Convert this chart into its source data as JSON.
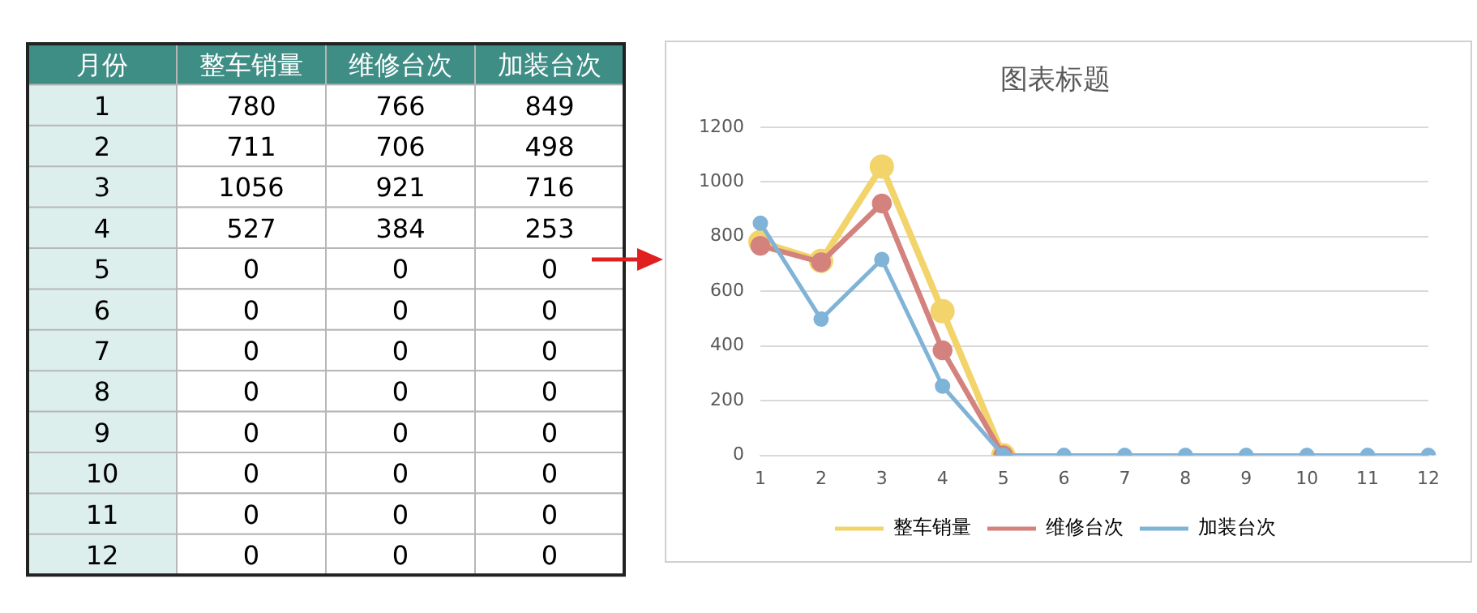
{
  "chart_data": [
    {
      "type": "heatmap",
      "annotations": [
        "月份"
      ],
      "data_labels": true,
      "categories": [
        "整车销量",
        "维修台次",
        "加装台次"
      ],
      "y_categories": [
        "1",
        "2",
        "3",
        "4",
        "5",
        "6",
        "7",
        "8",
        "9",
        "10",
        "11",
        "12"
      ],
      "cells": [
        [
          780,
          766,
          849
        ],
        [
          711,
          706,
          498
        ],
        [
          1056,
          921,
          716
        ],
        [
          527,
          384,
          253
        ],
        [
          0,
          0,
          0
        ],
        [
          0,
          0,
          0
        ],
        [
          0,
          0,
          0
        ],
        [
          0,
          0,
          0
        ],
        [
          0,
          0,
          0
        ],
        [
          0,
          0,
          0
        ],
        [
          0,
          0,
          0
        ],
        [
          0,
          0,
          0
        ]
      ]
    },
    {
      "type": "line",
      "title": "图表标题",
      "categories": [
        "1",
        "2",
        "3",
        "4",
        "5",
        "6",
        "7",
        "8",
        "9",
        "10",
        "11",
        "12"
      ],
      "series": [
        {
          "name": "整车销量",
          "color": "#f2d46b",
          "values": [
            780,
            711,
            1056,
            527,
            0,
            null,
            null,
            null,
            null,
            null,
            null,
            null
          ]
        },
        {
          "name": "维修台次",
          "color": "#d4827d",
          "values": [
            766,
            706,
            921,
            384,
            0,
            null,
            null,
            null,
            null,
            null,
            null,
            null
          ]
        },
        {
          "name": "加装台次",
          "color": "#80b3d8",
          "values": [
            849,
            498,
            716,
            253,
            0,
            0,
            0,
            0,
            0,
            0,
            0,
            0
          ]
        }
      ],
      "ylim": [
        0,
        1200
      ],
      "yticks": [
        0,
        200,
        400,
        600,
        800,
        1000,
        1200
      ],
      "grid": "y",
      "legend": "bottom",
      "marker": "circle",
      "line_style": "solid"
    }
  ]
}
